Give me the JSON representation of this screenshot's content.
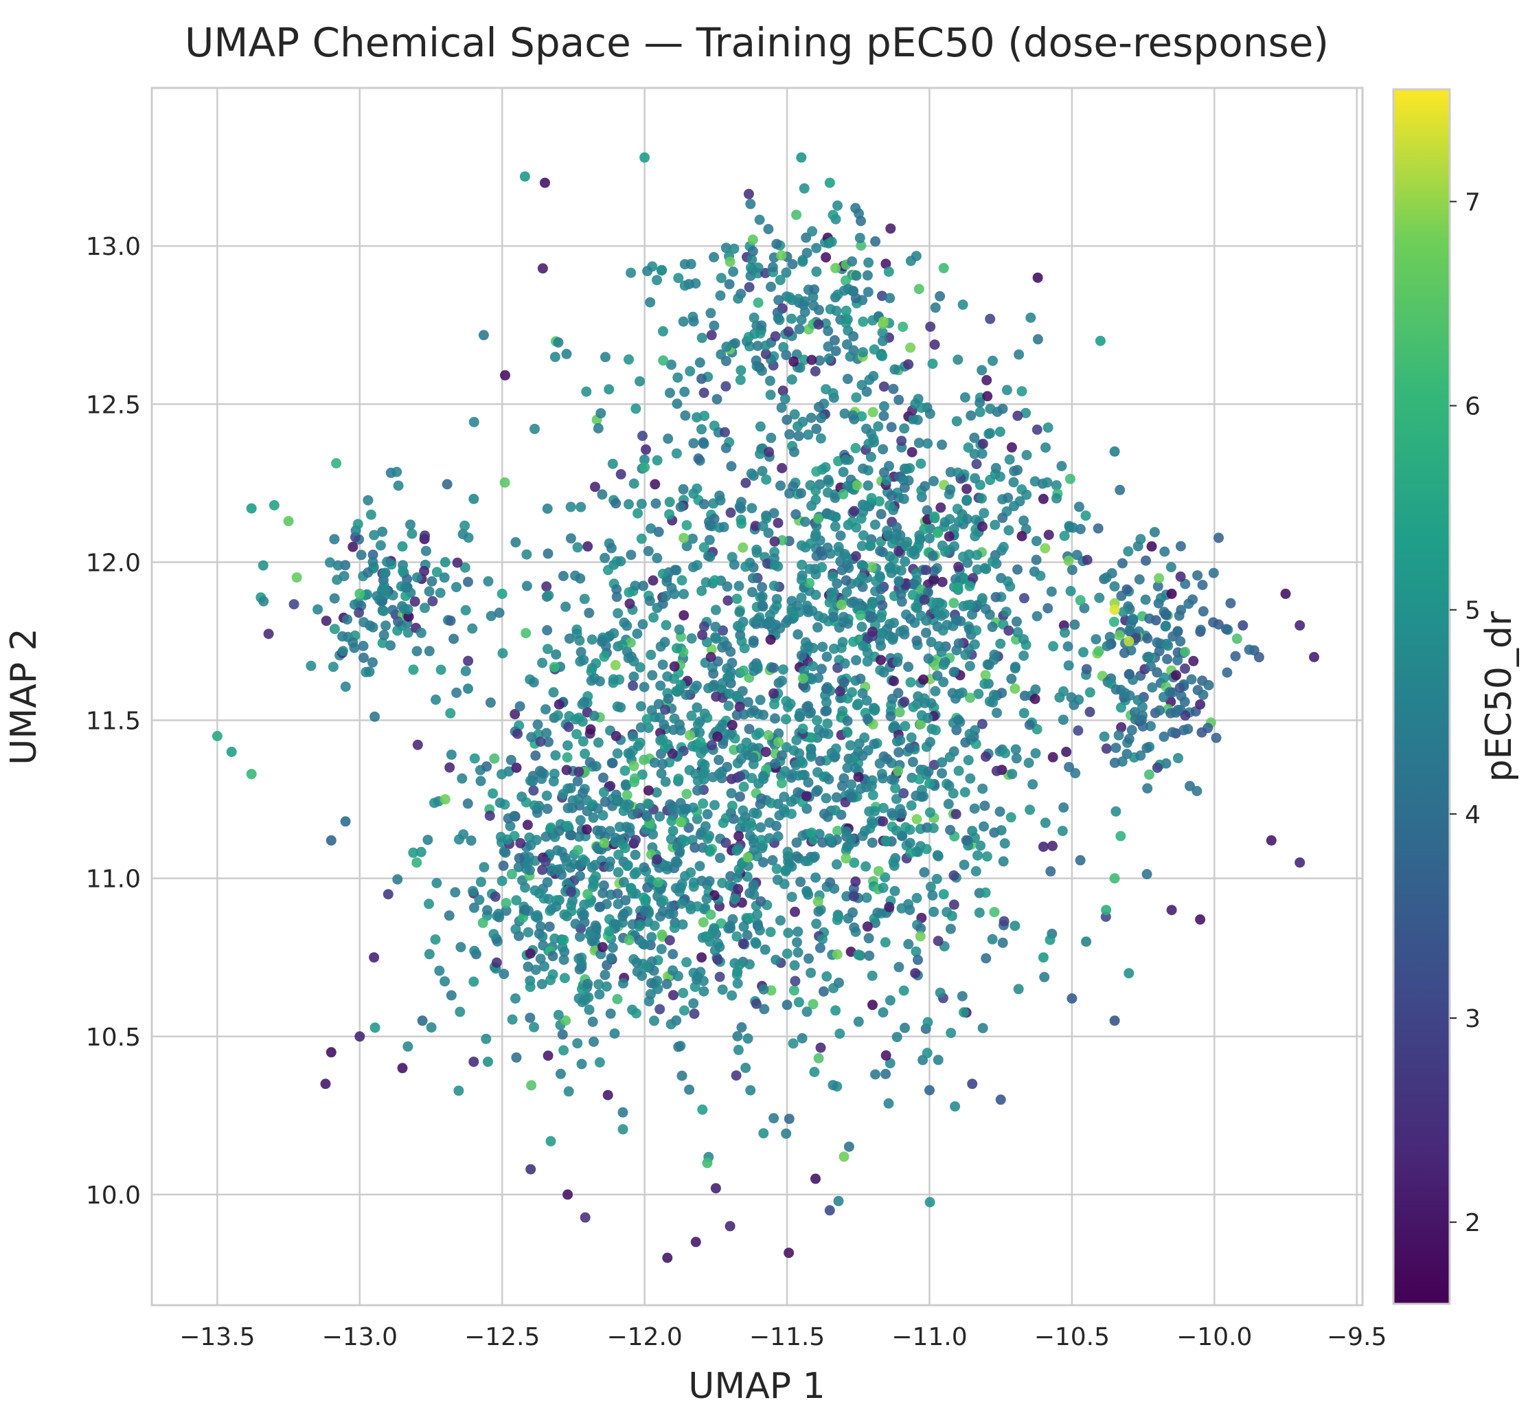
{
  "chart_data": {
    "type": "scatter",
    "title": "UMAP Chemical Space — Training pEC50 (dose-response)",
    "xlabel": "UMAP 1",
    "ylabel": "UMAP 2",
    "xlim": [
      -13.73,
      -9.48
    ],
    "ylim": [
      9.65,
      13.5
    ],
    "xticks": [
      -13.5,
      -13.0,
      -12.5,
      -12.0,
      -11.5,
      -11.0,
      -10.5,
      -10.0,
      -9.5
    ],
    "xtick_labels": [
      "−13.5",
      "−13.0",
      "−12.5",
      "−12.0",
      "−11.5",
      "−11.0",
      "−10.5",
      "−10.0",
      "−9.5"
    ],
    "yticks": [
      10.0,
      10.5,
      11.0,
      11.5,
      12.0,
      12.5,
      13.0
    ],
    "ytick_labels": [
      "10.0",
      "10.5",
      "11.0",
      "11.5",
      "12.0",
      "12.5",
      "13.0"
    ],
    "grid": true,
    "colormap": "viridis",
    "colorbar": {
      "label": "pEC50_dr",
      "range": [
        1.6,
        7.55
      ],
      "ticks": [
        2,
        3,
        4,
        5,
        6,
        7
      ],
      "tick_labels": [
        "2",
        "3",
        "4",
        "5",
        "6",
        "7"
      ]
    },
    "point_count": 3200,
    "points": [
      [
        -13.5,
        11.45,
        5.6
      ],
      [
        -13.45,
        11.4,
        5.4
      ],
      [
        -13.38,
        11.33,
        6.1
      ],
      [
        -13.38,
        12.17,
        5.3
      ],
      [
        -13.3,
        12.18,
        5.5
      ],
      [
        -13.25,
        12.13,
        6.6
      ],
      [
        -13.1,
        10.45,
        1.9
      ],
      [
        -13.12,
        10.35,
        2.1
      ],
      [
        -13.0,
        10.5,
        2.3
      ],
      [
        -12.85,
        10.4,
        2.0
      ],
      [
        -12.35,
        13.2,
        2.0
      ],
      [
        -12.42,
        13.22,
        5.2
      ],
      [
        -12.0,
        13.28,
        5.3
      ],
      [
        -11.45,
        13.28,
        5.1
      ],
      [
        -11.35,
        13.2,
        5.4
      ],
      [
        -11.62,
        13.02,
        6.6
      ],
      [
        -11.7,
        12.95,
        6.7
      ],
      [
        -11.52,
        12.97,
        6.8
      ],
      [
        -11.33,
        12.93,
        6.7
      ],
      [
        -10.95,
        12.93,
        6.2
      ],
      [
        -10.62,
        12.9,
        1.9
      ],
      [
        -10.4,
        12.7,
        5.3
      ],
      [
        -10.35,
        11.87,
        7.0
      ],
      [
        -10.3,
        11.75,
        7.2
      ],
      [
        -10.35,
        11.85,
        7.4
      ],
      [
        -9.9,
        11.8,
        3.1
      ],
      [
        -9.75,
        11.9,
        2.0
      ],
      [
        -9.7,
        11.8,
        2.3
      ],
      [
        -9.65,
        11.7,
        2.2
      ],
      [
        -9.8,
        11.12,
        2.1
      ],
      [
        -9.7,
        11.05,
        2.4
      ],
      [
        -10.05,
        10.87,
        2.0
      ],
      [
        -10.15,
        10.9,
        2.2
      ],
      [
        -10.38,
        10.9,
        5.8
      ],
      [
        -10.35,
        11.0,
        6.2
      ],
      [
        -10.35,
        10.55,
        3.4
      ],
      [
        -10.5,
        10.62,
        3.6
      ],
      [
        -10.3,
        10.7,
        5.0
      ],
      [
        -10.85,
        10.35,
        3.0
      ],
      [
        -10.75,
        10.3,
        3.5
      ],
      [
        -11.0,
        10.33,
        3.8
      ],
      [
        -11.35,
        9.95,
        3.2
      ],
      [
        -11.4,
        10.05,
        2.0
      ],
      [
        -11.3,
        10.12,
        6.8
      ],
      [
        -11.75,
        10.02,
        2.2
      ],
      [
        -11.7,
        9.9,
        2.4
      ],
      [
        -11.78,
        10.1,
        6.2
      ],
      [
        -11.92,
        9.8,
        2.0
      ],
      [
        -11.82,
        9.85,
        2.1
      ],
      [
        -12.27,
        10.0,
        2.0
      ],
      [
        -12.4,
        10.08,
        2.6
      ],
      [
        -12.55,
        10.42,
        5.0
      ],
      [
        -12.78,
        10.55,
        3.9
      ],
      [
        -12.6,
        10.42,
        2.5
      ],
      [
        -12.95,
        10.75,
        2.3
      ],
      [
        -12.9,
        10.95,
        2.8
      ],
      [
        -12.8,
        11.05,
        6.0
      ],
      [
        -13.1,
        11.12,
        3.8
      ],
      [
        -13.05,
        11.18,
        4.0
      ],
      [
        -12.7,
        11.25,
        6.8
      ],
      [
        -12.62,
        11.6,
        4.6
      ],
      [
        -12.3,
        11.55,
        2.2
      ],
      [
        -12.45,
        11.35,
        2.1
      ],
      [
        -12.1,
        11.45,
        2.2
      ],
      [
        -11.6,
        11.3,
        4.8
      ],
      [
        -11.3,
        11.62,
        3.8
      ],
      [
        -11.2,
        11.78,
        2.3
      ],
      [
        -10.9,
        11.92,
        5.5
      ],
      [
        -10.7,
        11.6,
        6.8
      ],
      [
        -10.52,
        11.4,
        2.1
      ],
      [
        -10.2,
        11.35,
        3.0
      ],
      [
        -10.05,
        11.55,
        2.3
      ],
      [
        -10.6,
        12.2,
        2.0
      ],
      [
        -10.35,
        12.35,
        4.5
      ],
      [
        -10.22,
        12.05,
        1.9
      ],
      [
        -10.15,
        11.9,
        1.8
      ],
      [
        -10.6,
        11.1,
        2.4
      ],
      [
        -10.85,
        11.15,
        4.7
      ],
      [
        -11.0,
        11.3,
        5.2
      ],
      [
        -11.25,
        11.4,
        4.5
      ],
      [
        -11.8,
        12.58,
        3.7
      ],
      [
        -12.0,
        12.3,
        5.8
      ],
      [
        -12.2,
        12.05,
        2.3
      ],
      [
        -12.6,
        12.2,
        4.8
      ],
      [
        -12.85,
        12.05,
        5.1
      ],
      [
        -13.0,
        11.9,
        6.3
      ],
      [
        -12.7,
        12.0,
        5.0
      ],
      [
        -12.5,
        11.9,
        5.5
      ],
      [
        -12.3,
        11.15,
        4.2
      ],
      [
        -12.2,
        10.95,
        6.2
      ],
      [
        -11.8,
        10.75,
        2.0
      ],
      [
        -11.7,
        10.85,
        4.4
      ],
      [
        -11.5,
        10.6,
        4.1
      ],
      [
        -11.2,
        10.6,
        1.9
      ],
      [
        -11.05,
        10.7,
        2.5
      ],
      [
        -10.95,
        10.95,
        5.3
      ],
      [
        -10.7,
        10.85,
        4.9
      ],
      [
        -10.6,
        10.75,
        5.2
      ],
      [
        -10.45,
        10.8,
        4.6
      ],
      [
        -11.9,
        11.15,
        4.9
      ]
    ]
  }
}
